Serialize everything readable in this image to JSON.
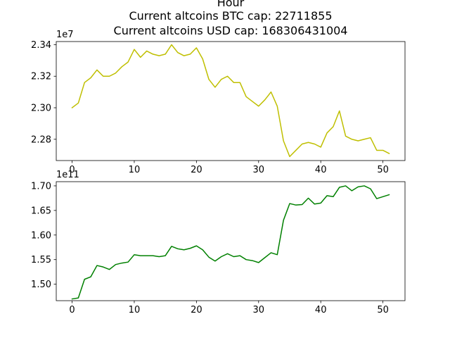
{
  "figure": {
    "title_lines": [
      "Hour",
      "Current altcoins BTC cap: 22711855",
      "Current altcoins USD cap: 168306431004"
    ]
  },
  "chart_data": [
    {
      "type": "line",
      "title": "",
      "xlabel": "",
      "ylabel": "",
      "offset_label": "1e7",
      "grid": false,
      "xlim": [
        -2.55,
        53.55
      ],
      "ylim": [
        22.665,
        23.42
      ],
      "xticks": [
        0,
        10,
        20,
        30,
        40,
        50
      ],
      "yticks": [
        22.8,
        23.0,
        23.2,
        23.4
      ],
      "ytick_labels": [
        "2.28",
        "2.30",
        "2.32",
        "2.34"
      ],
      "series": [
        {
          "color": "#bfbf00",
          "x": [
            0,
            1,
            2,
            3,
            4,
            5,
            6,
            7,
            8,
            9,
            10,
            11,
            12,
            13,
            14,
            15,
            16,
            17,
            18,
            19,
            20,
            21,
            22,
            23,
            24,
            25,
            26,
            27,
            28,
            29,
            30,
            31,
            32,
            33,
            34,
            35,
            36,
            37,
            38,
            39,
            40,
            41,
            42,
            43,
            44,
            45,
            46,
            47,
            48,
            49,
            50,
            51
          ],
          "values": [
            23.0,
            23.03,
            23.16,
            23.19,
            23.24,
            23.2,
            23.2,
            23.22,
            23.26,
            23.29,
            23.37,
            23.32,
            23.36,
            23.34,
            23.33,
            23.34,
            23.4,
            23.35,
            23.33,
            23.34,
            23.38,
            23.31,
            23.18,
            23.13,
            23.18,
            23.2,
            23.16,
            23.16,
            23.07,
            23.04,
            23.01,
            23.05,
            23.1,
            23.01,
            22.79,
            22.69,
            22.73,
            22.77,
            22.78,
            22.77,
            22.75,
            22.84,
            22.88,
            22.98,
            22.82,
            22.8,
            22.79,
            22.8,
            22.81,
            22.73,
            22.73,
            22.71
          ]
        }
      ]
    },
    {
      "type": "line",
      "title": "",
      "xlabel": "",
      "ylabel": "",
      "offset_label": "1e11",
      "grid": false,
      "xlim": [
        -2.55,
        53.55
      ],
      "ylim": [
        1.4665,
        1.7085
      ],
      "xticks": [
        0,
        10,
        20,
        30,
        40,
        50
      ],
      "yticks": [
        1.5,
        1.55,
        1.6,
        1.65,
        1.7
      ],
      "ytick_labels": [
        "1.50",
        "1.55",
        "1.60",
        "1.65",
        "1.70"
      ],
      "series": [
        {
          "color": "#008000",
          "x": [
            0,
            1,
            2,
            3,
            4,
            5,
            6,
            7,
            8,
            9,
            10,
            11,
            12,
            13,
            14,
            15,
            16,
            17,
            18,
            19,
            20,
            21,
            22,
            23,
            24,
            25,
            26,
            27,
            28,
            29,
            30,
            31,
            32,
            33,
            34,
            35,
            36,
            37,
            38,
            39,
            40,
            41,
            42,
            43,
            44,
            45,
            46,
            47,
            48,
            49,
            50,
            51
          ],
          "values": [
            1.47,
            1.472,
            1.51,
            1.515,
            1.538,
            1.535,
            1.53,
            1.54,
            1.543,
            1.545,
            1.56,
            1.558,
            1.558,
            1.558,
            1.556,
            1.558,
            1.577,
            1.572,
            1.57,
            1.573,
            1.578,
            1.57,
            1.555,
            1.547,
            1.556,
            1.562,
            1.556,
            1.558,
            1.55,
            1.548,
            1.544,
            1.554,
            1.564,
            1.56,
            1.63,
            1.664,
            1.661,
            1.662,
            1.675,
            1.663,
            1.665,
            1.68,
            1.678,
            1.697,
            1.7,
            1.69,
            1.698,
            1.7,
            1.694,
            1.674,
            1.678,
            1.682
          ]
        }
      ]
    }
  ]
}
